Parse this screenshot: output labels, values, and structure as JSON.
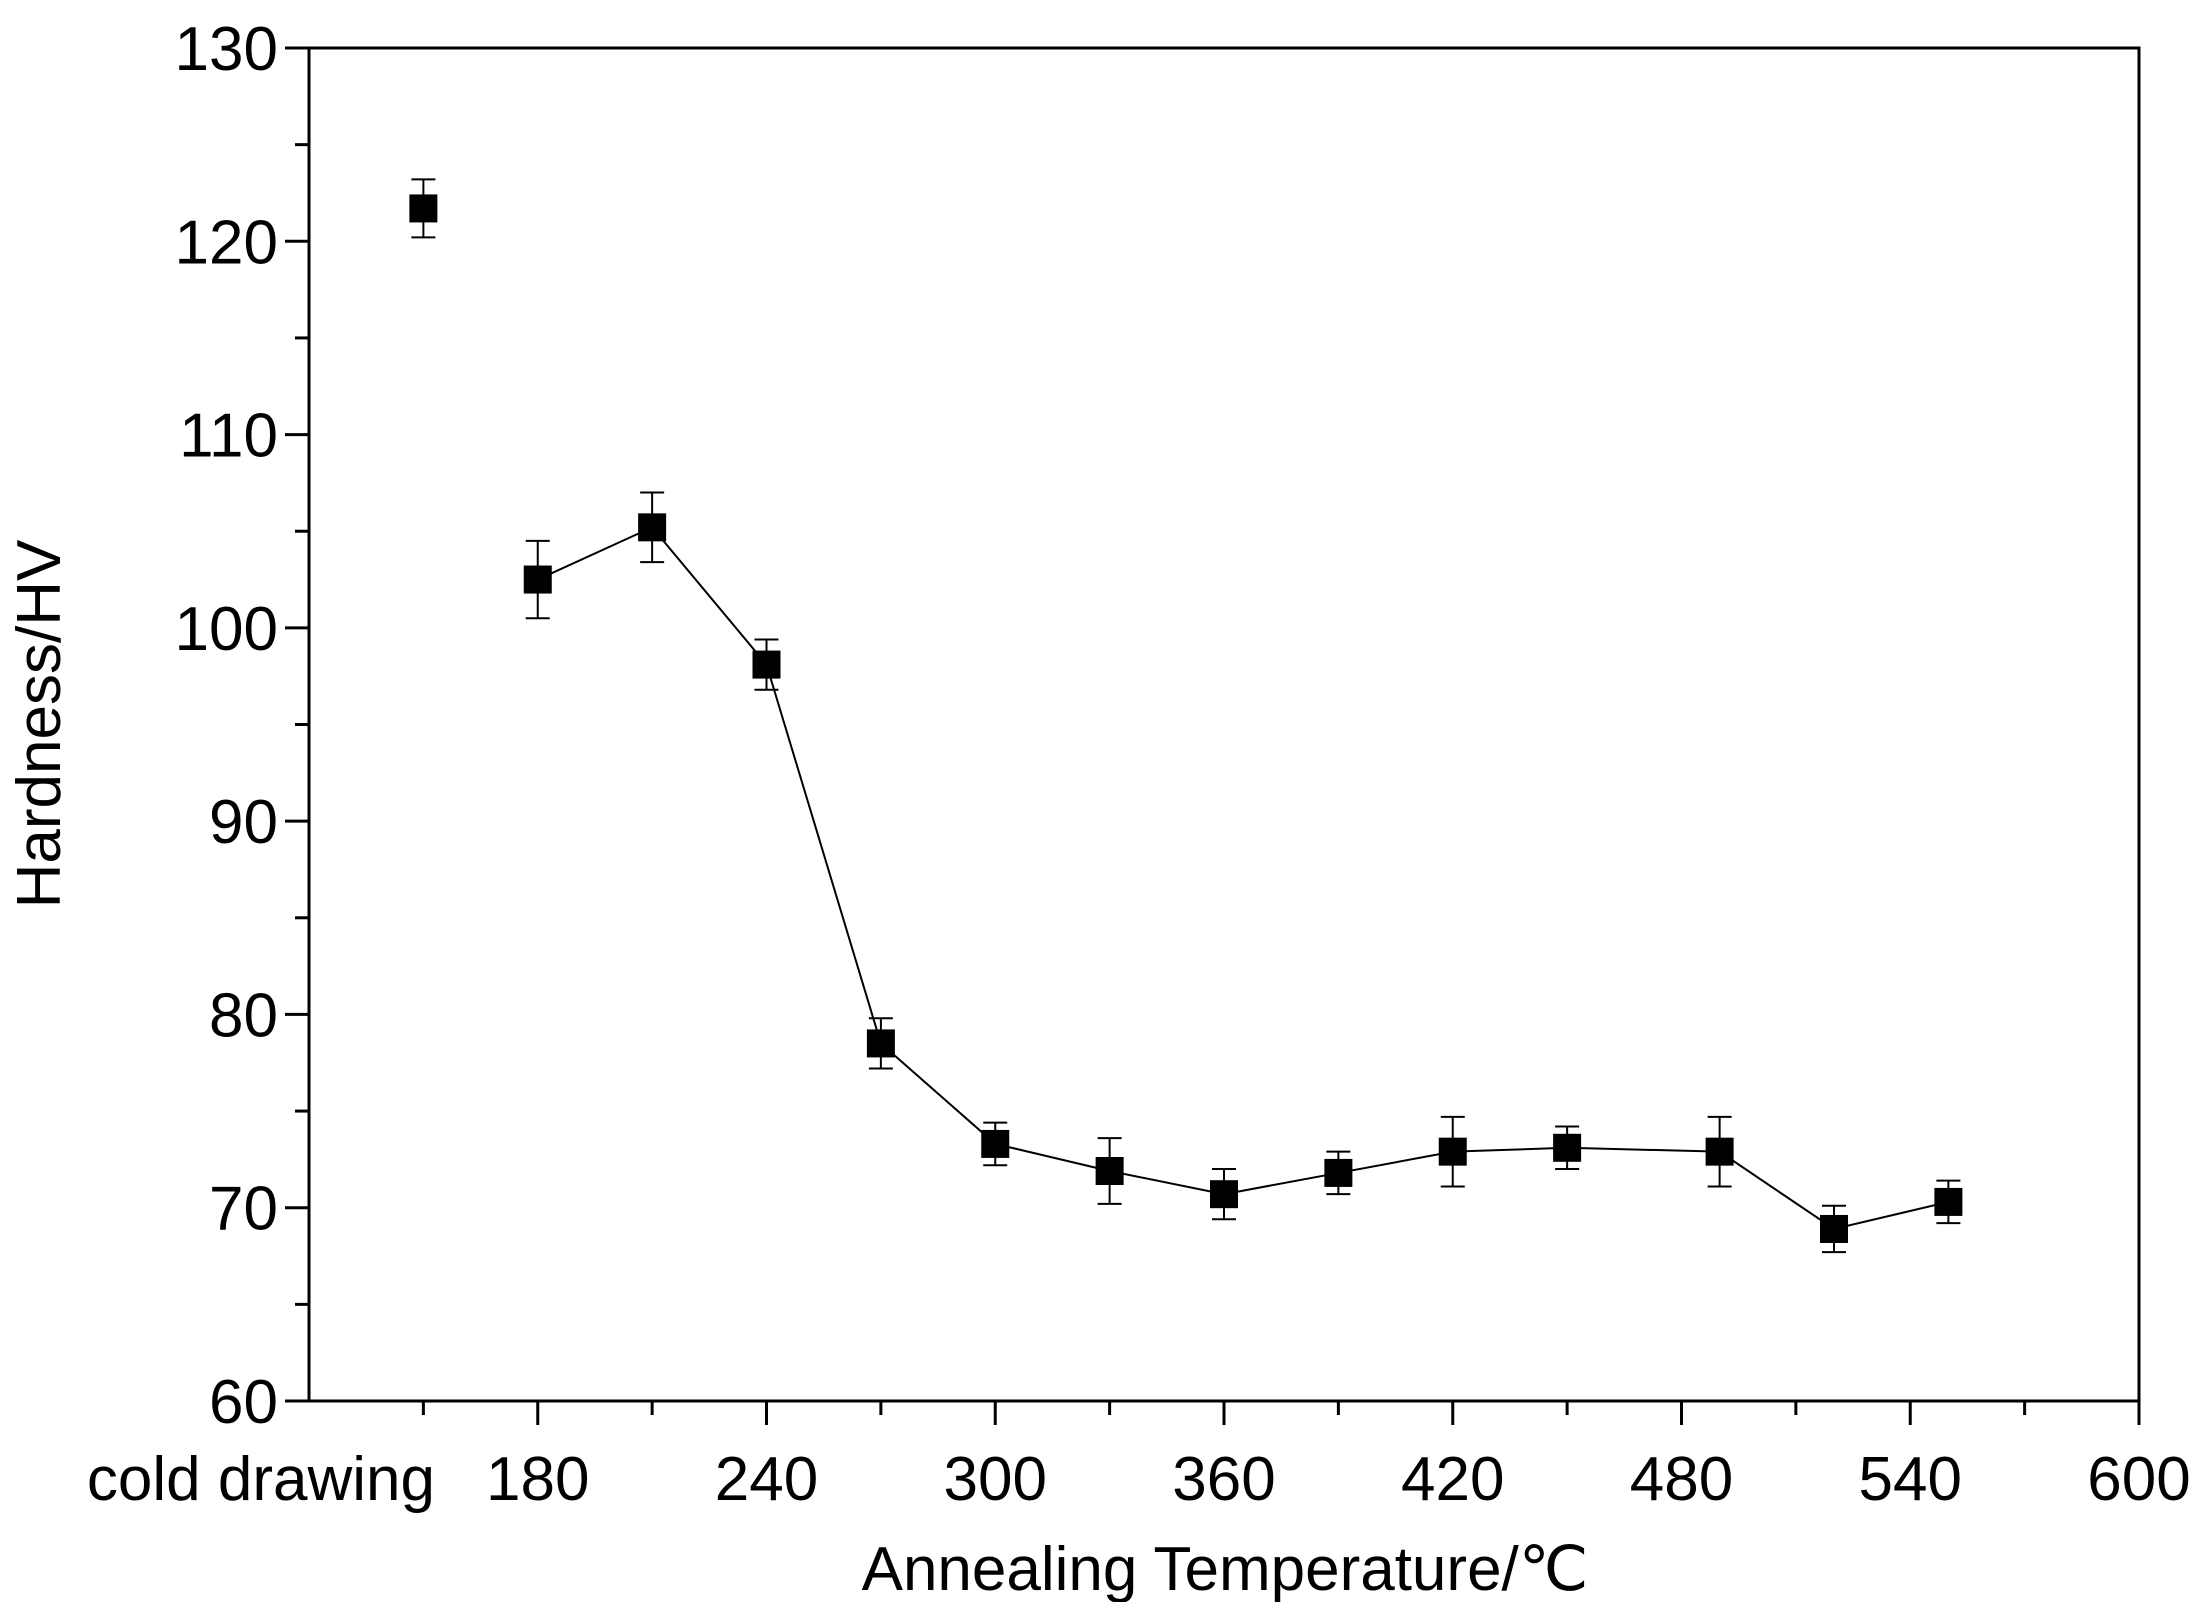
{
  "chart_data": {
    "type": "scatter",
    "title": "",
    "xlabel": "Annealing Temperature/℃",
    "ylabel": "Hardness/HV",
    "xlim": [
      120,
      600
    ],
    "ylim": [
      60,
      130
    ],
    "grid": false,
    "legend": "none",
    "x_ticks": [
      180,
      240,
      300,
      360,
      420,
      480,
      540,
      600
    ],
    "x_tick_labels": [
      "180",
      "240",
      "300",
      "360",
      "420",
      "480",
      "540",
      "600"
    ],
    "x_minor_ticks": [
      150,
      210,
      270,
      330,
      390,
      450,
      510,
      570
    ],
    "y_ticks": [
      60,
      70,
      80,
      90,
      100,
      110,
      120,
      130
    ],
    "y_tick_labels": [
      "60",
      "70",
      "80",
      "90",
      "100",
      "110",
      "120",
      "130"
    ],
    "y_minor_ticks": [
      65,
      75,
      85,
      95,
      105,
      115,
      125
    ],
    "extra_category_label": "cold drawing",
    "unconnected_point": {
      "label": "cold drawing",
      "x": 150,
      "y": 121.7,
      "error": 1.5
    },
    "series": [
      {
        "name": "Hardness",
        "marker": "square",
        "color": "#000000",
        "x": [
          180,
          210,
          240,
          270,
          300,
          330,
          360,
          390,
          420,
          450,
          490,
          520,
          550
        ],
        "y": [
          102.5,
          105.2,
          98.1,
          78.5,
          73.3,
          71.9,
          70.7,
          71.8,
          72.9,
          73.1,
          72.9,
          68.9,
          70.3
        ],
        "error": [
          2.0,
          1.8,
          1.3,
          1.3,
          1.1,
          1.7,
          1.3,
          1.1,
          1.8,
          1.1,
          1.8,
          1.2,
          1.1
        ]
      }
    ]
  }
}
